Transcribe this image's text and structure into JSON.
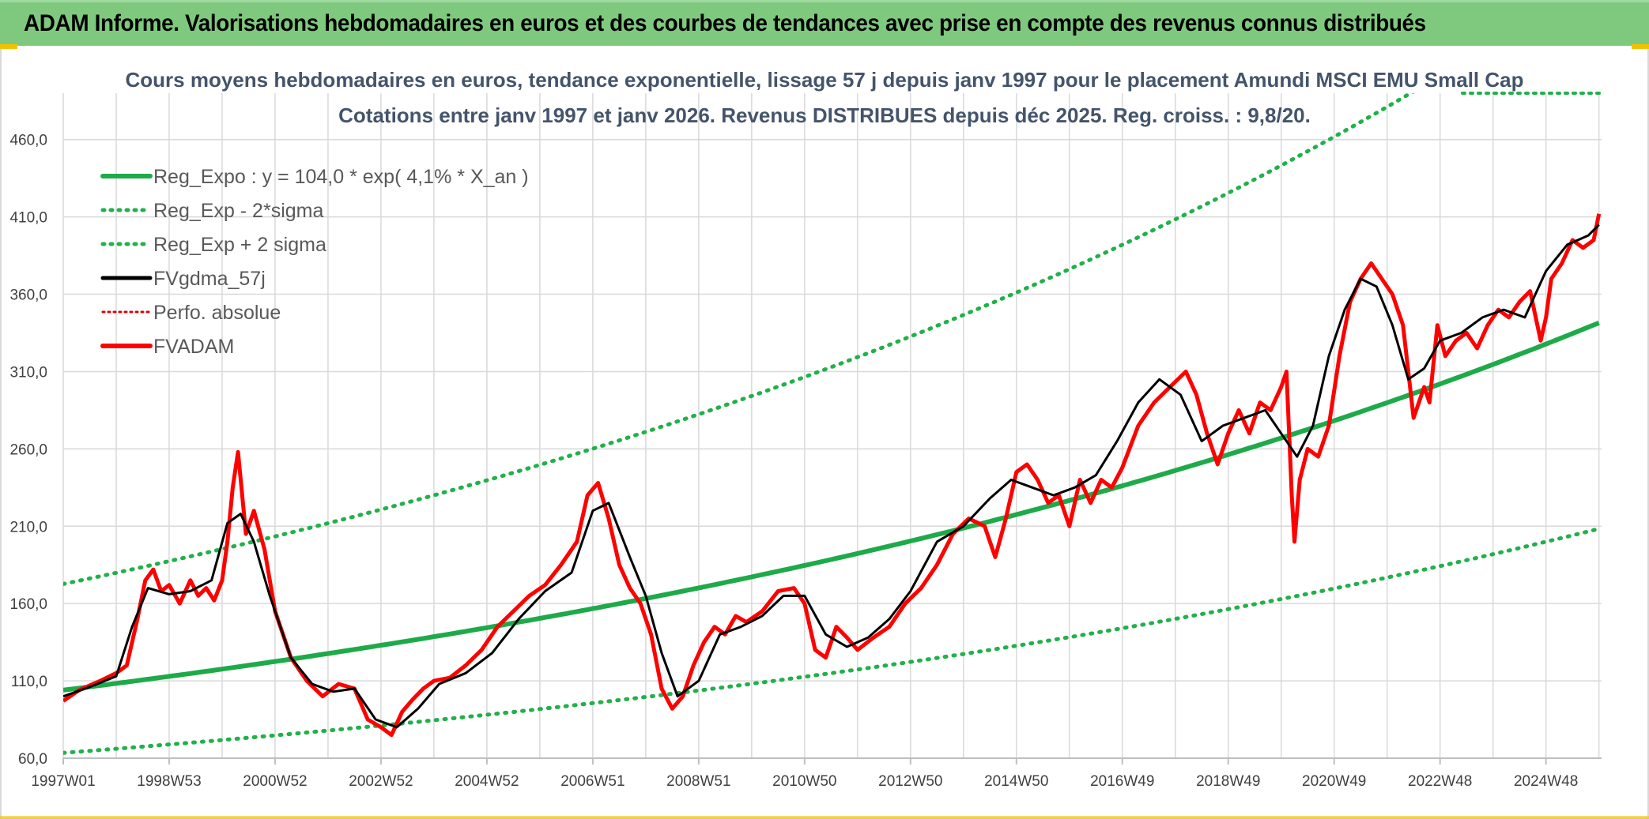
{
  "header": {
    "title": "ADAM Informe. Valorisations hebdomadaires en euros et des courbes de tendances avec prise en compte des revenus connus distribués"
  },
  "colors": {
    "header_bg": "#7fc97f",
    "trend_green": "#1faa4a",
    "band_green": "#22b04b",
    "fvgdma_black": "#000000",
    "fvadam_red": "#ff0000",
    "perfo_red": "#e00000",
    "grid": "#d9d9d9",
    "title_color": "#44546a"
  },
  "chart_data": {
    "type": "line",
    "title_line1": "Cours moyens hebdomadaires en euros, tendance exponentielle, lissage 57 j depuis janv 1997 pour le placement Amundi MSCI EMU Small Cap",
    "title_line2": "Cotations entre janv 1997 et janv 2026. Revenus DISTRIBUES depuis déc 2025. Reg. croiss. : 9,8/20.",
    "xlabel": "",
    "ylabel": "",
    "xlim": [
      1997.0,
      2026.05
    ],
    "ylim": [
      60,
      490
    ],
    "y_ticks": [
      {
        "value": 60,
        "label": "60,0"
      },
      {
        "value": 110,
        "label": "110,0"
      },
      {
        "value": 160,
        "label": "160,0"
      },
      {
        "value": 210,
        "label": "210,0"
      },
      {
        "value": 260,
        "label": "260,0"
      },
      {
        "value": 310,
        "label": "310,0"
      },
      {
        "value": 360,
        "label": "360,0"
      },
      {
        "value": 410,
        "label": "410,0"
      },
      {
        "value": 460,
        "label": "460,0"
      }
    ],
    "x_ticks": [
      {
        "value": 1997.0,
        "label": "1997W01"
      },
      {
        "value": 1999.0,
        "label": "1998W53"
      },
      {
        "value": 2001.0,
        "label": "2000W52"
      },
      {
        "value": 2003.0,
        "label": "2002W52"
      },
      {
        "value": 2005.0,
        "label": "2004W52"
      },
      {
        "value": 2007.0,
        "label": "2006W51"
      },
      {
        "value": 2009.0,
        "label": "2008W51"
      },
      {
        "value": 2011.0,
        "label": "2010W50"
      },
      {
        "value": 2013.0,
        "label": "2012W50"
      },
      {
        "value": 2015.0,
        "label": "2014W50"
      },
      {
        "value": 2017.0,
        "label": "2016W49"
      },
      {
        "value": 2019.0,
        "label": "2018W49"
      },
      {
        "value": 2021.0,
        "label": "2020W49"
      },
      {
        "value": 2023.0,
        "label": "2022W48"
      },
      {
        "value": 2025.0,
        "label": "2024W48"
      }
    ],
    "legend": [
      {
        "key": "reg_expo",
        "label": "Reg_Expo : y = 104,0 * exp( 4,1% *  X_an )",
        "style": "solid-green"
      },
      {
        "key": "reg_minus",
        "label": "Reg_Exp - 2*sigma",
        "style": "dotted-green"
      },
      {
        "key": "reg_plus",
        "label": "Reg_Exp + 2 sigma",
        "style": "dotted-green"
      },
      {
        "key": "fvgdma",
        "label": "FVgdma_57j",
        "style": "solid-black"
      },
      {
        "key": "perfo",
        "label": "Perfo. absolue",
        "style": "dotted-red"
      },
      {
        "key": "fvadam",
        "label": "FVADAM",
        "style": "solid-red"
      }
    ],
    "regression": {
      "a": 104.0,
      "rate": 0.041,
      "start_year": 1997.0,
      "end_year": 2026.05,
      "lower_factor": 0.61,
      "upper_factor": 1.66
    },
    "series": [
      {
        "name": "FVADAM",
        "x": [
          1997.0,
          1997.3,
          1997.7,
          1998.0,
          1998.2,
          1998.4,
          1998.55,
          1998.7,
          1998.85,
          1999.0,
          1999.2,
          1999.4,
          1999.55,
          1999.7,
          1999.85,
          2000.0,
          2000.1,
          2000.2,
          2000.3,
          2000.45,
          2000.6,
          2000.8,
          2001.0,
          2001.3,
          2001.6,
          2001.9,
          2002.2,
          2002.5,
          2002.75,
          2003.0,
          2003.2,
          2003.4,
          2003.6,
          2003.8,
          2004.0,
          2004.3,
          2004.6,
          2004.9,
          2005.2,
          2005.5,
          2005.8,
          2006.1,
          2006.4,
          2006.7,
          2006.9,
          2007.1,
          2007.3,
          2007.5,
          2007.7,
          2007.9,
          2008.1,
          2008.3,
          2008.5,
          2008.7,
          2008.9,
          2009.1,
          2009.3,
          2009.5,
          2009.7,
          2009.9,
          2010.2,
          2010.5,
          2010.8,
          2011.0,
          2011.2,
          2011.4,
          2011.6,
          2011.8,
          2012.0,
          2012.3,
          2012.6,
          2012.9,
          2013.2,
          2013.5,
          2013.8,
          2014.1,
          2014.4,
          2014.6,
          2014.8,
          2015.0,
          2015.2,
          2015.4,
          2015.6,
          2015.8,
          2016.0,
          2016.2,
          2016.4,
          2016.6,
          2016.8,
          2017.0,
          2017.3,
          2017.6,
          2017.9,
          2018.2,
          2018.4,
          2018.6,
          2018.8,
          2019.0,
          2019.2,
          2019.4,
          2019.6,
          2019.8,
          2020.0,
          2020.1,
          2020.2,
          2020.25,
          2020.35,
          2020.5,
          2020.7,
          2020.9,
          2021.1,
          2021.3,
          2021.5,
          2021.7,
          2021.9,
          2022.1,
          2022.3,
          2022.5,
          2022.7,
          2022.8,
          2022.95,
          2023.1,
          2023.3,
          2023.5,
          2023.7,
          2023.9,
          2024.1,
          2024.3,
          2024.5,
          2024.7,
          2024.9,
          2025.0,
          2025.1,
          2025.3,
          2025.5,
          2025.7,
          2025.9,
          2026.0
        ],
        "values": [
          97,
          104,
          110,
          115,
          120,
          150,
          175,
          182,
          168,
          172,
          160,
          175,
          165,
          170,
          162,
          175,
          200,
          235,
          258,
          205,
          220,
          195,
          155,
          125,
          110,
          100,
          108,
          105,
          85,
          80,
          75,
          90,
          98,
          105,
          110,
          112,
          120,
          130,
          145,
          155,
          165,
          172,
          185,
          200,
          230,
          238,
          215,
          185,
          170,
          160,
          140,
          105,
          92,
          100,
          120,
          135,
          145,
          140,
          152,
          148,
          155,
          168,
          170,
          160,
          130,
          125,
          145,
          138,
          130,
          138,
          145,
          160,
          170,
          185,
          205,
          215,
          210,
          190,
          215,
          245,
          250,
          240,
          225,
          230,
          210,
          240,
          225,
          240,
          235,
          248,
          275,
          290,
          300,
          310,
          295,
          270,
          250,
          270,
          285,
          270,
          290,
          285,
          300,
          310,
          230,
          200,
          240,
          260,
          255,
          275,
          320,
          355,
          370,
          380,
          370,
          360,
          340,
          280,
          300,
          290,
          340,
          320,
          330,
          335,
          325,
          340,
          350,
          345,
          355,
          362,
          330,
          345,
          370,
          380,
          395,
          390,
          395,
          412
        ]
      },
      {
        "name": "FVgdma_57j",
        "x": [
          1997.0,
          1997.5,
          1998.0,
          1998.3,
          1998.6,
          1999.0,
          1999.4,
          1999.8,
          2000.1,
          2000.35,
          2000.6,
          2000.9,
          2001.3,
          2001.7,
          2002.1,
          2002.5,
          2002.9,
          2003.3,
          2003.7,
          2004.1,
          2004.6,
          2005.1,
          2005.6,
          2006.1,
          2006.6,
          2007.0,
          2007.3,
          2007.7,
          2008.0,
          2008.3,
          2008.6,
          2009.0,
          2009.4,
          2009.8,
          2010.2,
          2010.6,
          2011.0,
          2011.4,
          2011.8,
          2012.2,
          2012.6,
          2013.0,
          2013.5,
          2014.0,
          2014.5,
          2014.9,
          2015.3,
          2015.7,
          2016.1,
          2016.5,
          2016.9,
          2017.3,
          2017.7,
          2018.1,
          2018.5,
          2018.9,
          2019.3,
          2019.7,
          2020.0,
          2020.3,
          2020.6,
          2020.9,
          2021.2,
          2021.5,
          2021.8,
          2022.1,
          2022.4,
          2022.7,
          2023.0,
          2023.4,
          2023.8,
          2024.2,
          2024.6,
          2025.0,
          2025.4,
          2025.8,
          2026.0
        ],
        "values": [
          100,
          106,
          113,
          145,
          170,
          166,
          168,
          175,
          212,
          218,
          200,
          165,
          125,
          108,
          103,
          105,
          85,
          80,
          92,
          108,
          115,
          128,
          150,
          168,
          180,
          220,
          225,
          190,
          165,
          128,
          100,
          110,
          140,
          145,
          152,
          165,
          165,
          140,
          132,
          138,
          150,
          168,
          200,
          210,
          228,
          240,
          235,
          230,
          235,
          243,
          265,
          290,
          305,
          295,
          265,
          275,
          280,
          285,
          270,
          255,
          275,
          320,
          350,
          370,
          365,
          340,
          305,
          312,
          330,
          335,
          345,
          350,
          345,
          375,
          392,
          398,
          405
        ]
      }
    ]
  }
}
